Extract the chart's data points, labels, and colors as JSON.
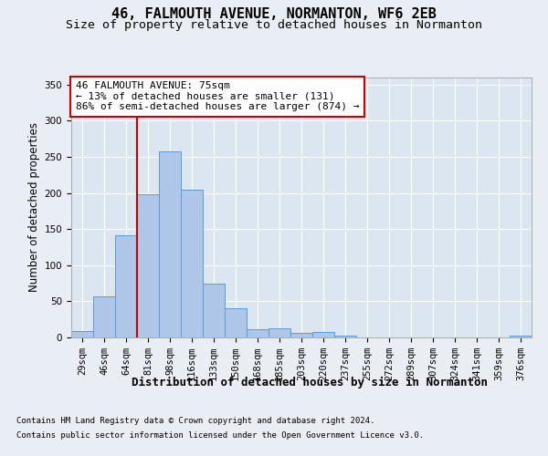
{
  "title": "46, FALMOUTH AVENUE, NORMANTON, WF6 2EB",
  "subtitle": "Size of property relative to detached houses in Normanton",
  "xlabel_bottom": "Distribution of detached houses by size in Normanton",
  "ylabel": "Number of detached properties",
  "bar_labels": [
    "29sqm",
    "46sqm",
    "64sqm",
    "81sqm",
    "98sqm",
    "116sqm",
    "133sqm",
    "150sqm",
    "168sqm",
    "185sqm",
    "203sqm",
    "220sqm",
    "237sqm",
    "255sqm",
    "272sqm",
    "289sqm",
    "307sqm",
    "324sqm",
    "341sqm",
    "359sqm",
    "376sqm"
  ],
  "bar_values": [
    9,
    57,
    141,
    198,
    258,
    204,
    74,
    40,
    12,
    13,
    6,
    7,
    3,
    0,
    0,
    0,
    0,
    0,
    0,
    0,
    3
  ],
  "bar_color": "#aec6e8",
  "bar_edgecolor": "#5b9bd5",
  "background_color": "#e8eef4",
  "plot_bg_color": "#dce6f0",
  "grid_color": "#ffffff",
  "vline_x_index": 2.5,
  "vline_color": "#cc0000",
  "annotation_box_text": "46 FALMOUTH AVENUE: 75sqm\n← 13% of detached houses are smaller (131)\n86% of semi-detached houses are larger (874) →",
  "footer_line1": "Contains HM Land Registry data © Crown copyright and database right 2024.",
  "footer_line2": "Contains public sector information licensed under the Open Government Licence v3.0.",
  "ylim": [
    0,
    360
  ],
  "yticks": [
    0,
    50,
    100,
    150,
    200,
    250,
    300,
    350
  ],
  "title_fontsize": 11,
  "subtitle_fontsize": 9.5,
  "ylabel_fontsize": 8.5,
  "tick_fontsize": 7.5,
  "annotation_fontsize": 8,
  "footer_fontsize": 6.5,
  "xlabel_fontsize": 9
}
